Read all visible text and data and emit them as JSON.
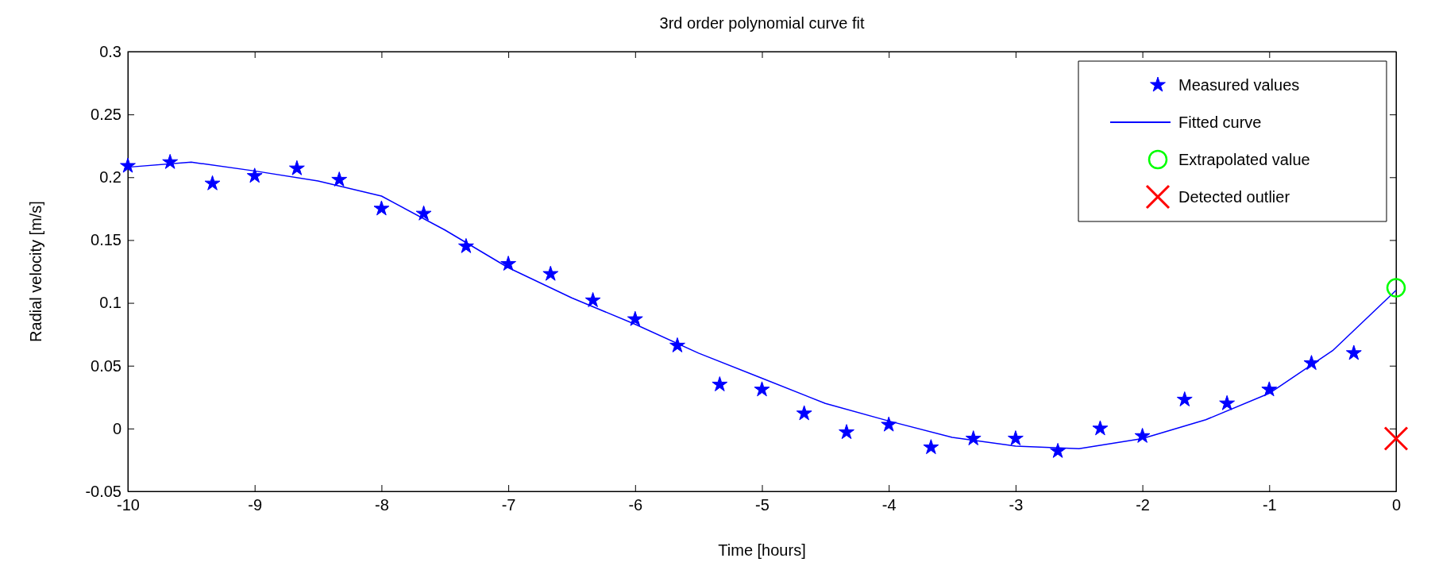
{
  "chart_data": {
    "type": "scatter",
    "title": "3rd order polynomial curve fit",
    "xlabel": "Time [hours]",
    "ylabel": "Radial velocity [m/s]",
    "xlim": [
      -10,
      0
    ],
    "xticks": [
      -10,
      -9,
      -8,
      -7,
      -6,
      -5,
      -4,
      -3,
      -2,
      -1,
      0
    ],
    "ylim": [
      -0.05,
      0.3
    ],
    "yticks": [
      -0.05,
      0,
      0.05,
      0.1,
      0.15,
      0.2,
      0.25,
      0.3
    ],
    "legend": "top right",
    "series": [
      {
        "name": "Measured values",
        "marker": "star",
        "color": "#0000ff",
        "x": [
          -10,
          -9.667,
          -9.333,
          -9,
          -8.667,
          -8.333,
          -8,
          -7.667,
          -7.333,
          -7,
          -6.667,
          -6.333,
          -6,
          -5.667,
          -5.333,
          -5,
          -4.667,
          -4.333,
          -4,
          -3.667,
          -3.333,
          -3,
          -2.667,
          -2.333,
          -2,
          -1.667,
          -1.333,
          -1,
          -0.667,
          -0.333
        ],
        "values": [
          0.209,
          0.212,
          0.195,
          0.201,
          0.207,
          0.198,
          0.175,
          0.171,
          0.145,
          0.131,
          0.123,
          0.102,
          0.087,
          0.066,
          0.035,
          0.031,
          0.012,
          -0.003,
          0.003,
          -0.015,
          -0.008,
          -0.008,
          -0.018,
          0.0,
          -0.006,
          0.023,
          0.02,
          0.031,
          0.052,
          0.06
        ]
      },
      {
        "name": "Fitted curve",
        "type": "line",
        "marker": "none",
        "color": "#0000ff",
        "x": [
          -10,
          -9.5,
          -9,
          -8.5,
          -8,
          -7.5,
          -7,
          -6.5,
          -6,
          -5.5,
          -5,
          -4.5,
          -4,
          -3.5,
          -3,
          -2.5,
          -2,
          -1.5,
          -1,
          -0.5,
          0
        ],
        "values": [
          0.208,
          0.212,
          0.205,
          0.197,
          0.185,
          0.158,
          0.128,
          0.104,
          0.083,
          0.06,
          0.04,
          0.02,
          0.006,
          -0.007,
          -0.014,
          -0.016,
          -0.008,
          0.007,
          0.028,
          0.062,
          0.11
        ]
      },
      {
        "name": "Extrapolated value",
        "marker": "circle",
        "color": "#00ff00",
        "x": [
          0
        ],
        "values": [
          0.112
        ]
      },
      {
        "name": "Detected outlier",
        "marker": "cross",
        "color": "#ff0000",
        "x": [
          0
        ],
        "values": [
          -0.008
        ]
      }
    ]
  }
}
